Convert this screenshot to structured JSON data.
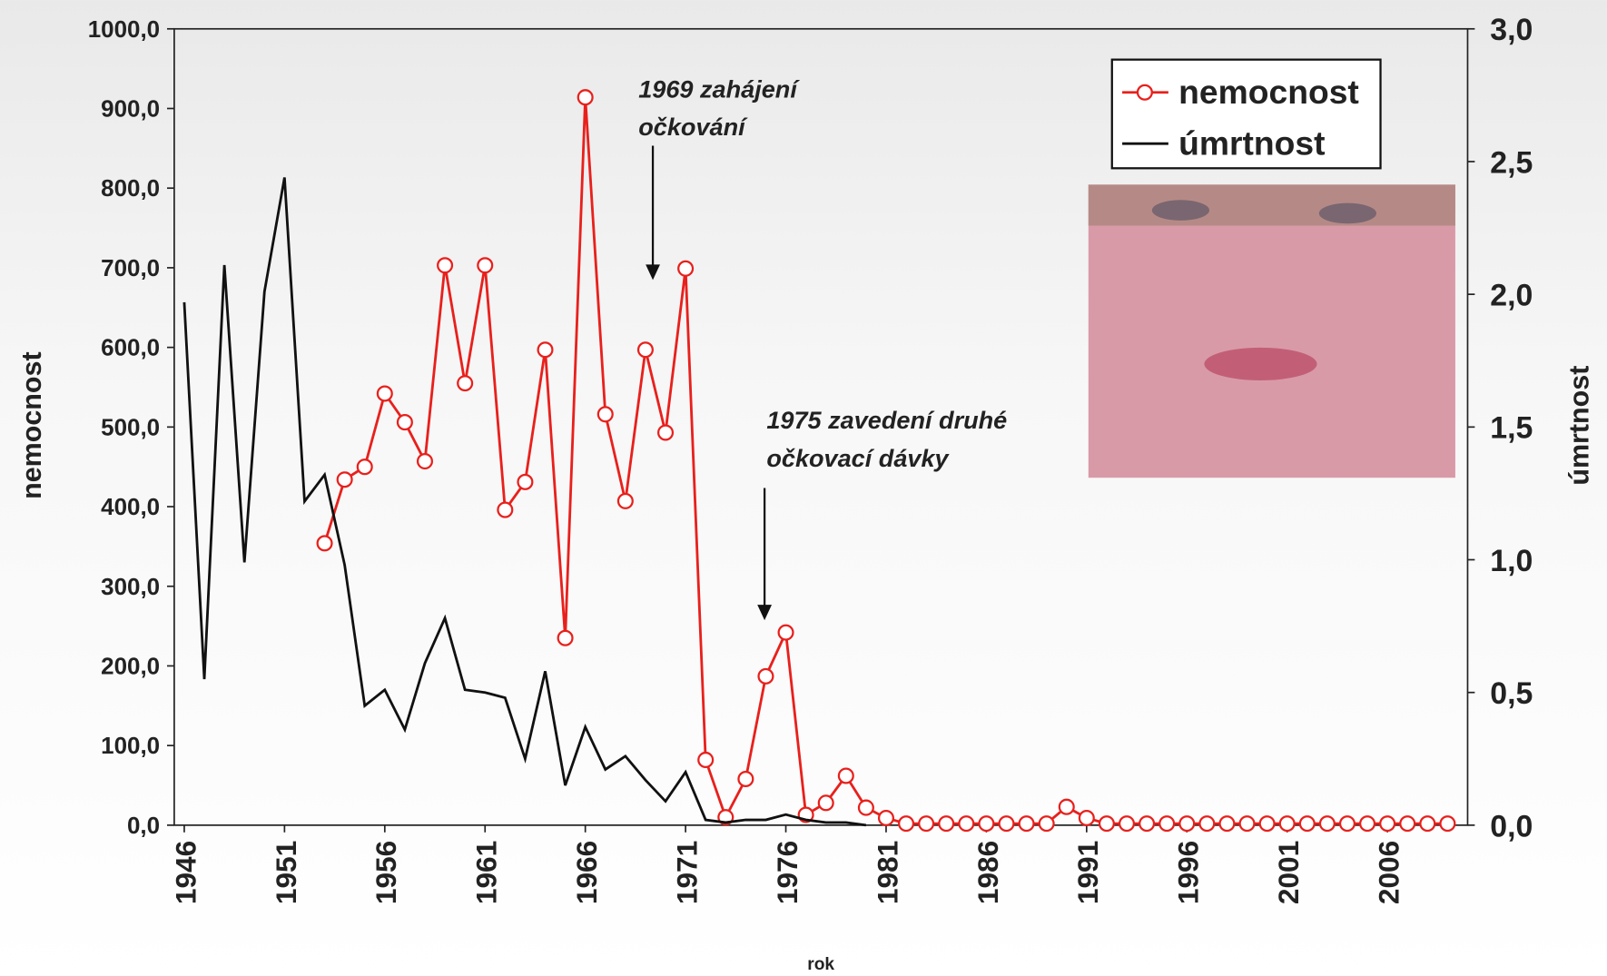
{
  "chart_data": {
    "type": "line",
    "x": [
      1946,
      1947,
      1948,
      1949,
      1950,
      1951,
      1952,
      1953,
      1954,
      1955,
      1956,
      1957,
      1958,
      1959,
      1960,
      1961,
      1962,
      1963,
      1964,
      1965,
      1966,
      1967,
      1968,
      1969,
      1970,
      1971,
      1972,
      1973,
      1974,
      1975,
      1976,
      1977,
      1978,
      1979,
      1980,
      1981,
      1982,
      1983,
      1984,
      1985,
      1986,
      1987,
      1988,
      1989,
      1990,
      1991,
      1992,
      1993,
      1994,
      1995,
      1996,
      1997,
      1998,
      1999,
      2000,
      2001,
      2002,
      2003,
      2004,
      2005,
      2006,
      2007,
      2008,
      2009
    ],
    "series": [
      {
        "name": "nemocnost",
        "color": "#e8201c",
        "marker": "circle",
        "values": [
          null,
          null,
          null,
          null,
          null,
          null,
          null,
          354,
          434,
          450,
          542,
          506,
          457,
          703,
          555,
          703,
          396,
          431,
          597,
          235,
          914,
          516,
          407,
          597,
          493,
          699,
          82,
          10,
          58,
          187,
          242,
          13,
          28,
          62,
          22,
          9,
          2,
          2,
          2,
          2,
          2,
          2,
          2,
          2,
          23,
          9,
          2,
          2,
          2,
          2,
          2,
          2,
          2,
          2,
          2,
          2,
          2,
          2,
          2,
          2,
          2,
          2,
          2,
          2
        ]
      },
      {
        "name": "úmrtnost",
        "color": "#111111",
        "axis": "y2",
        "values": [
          1.97,
          0.55,
          2.11,
          0.99,
          2.01,
          2.44,
          1.22,
          1.32,
          0.98,
          0.45,
          0.51,
          0.36,
          0.61,
          0.78,
          0.51,
          0.5,
          0.48,
          0.25,
          0.58,
          0.15,
          0.37,
          0.21,
          0.26,
          0.17,
          0.09,
          0.2,
          0.02,
          0.01,
          0.02,
          0.02,
          0.04,
          0.02,
          0.01,
          0.01,
          0.0,
          null,
          null,
          null,
          null,
          null,
          null,
          null,
          null,
          null,
          null,
          null,
          null,
          null,
          null,
          null,
          null,
          null,
          null,
          null,
          null,
          null,
          null,
          null,
          null,
          null,
          null,
          null,
          null,
          null
        ]
      }
    ],
    "xlim": [
      1945.5,
      2010
    ],
    "xticks": [
      1946,
      1951,
      1956,
      1961,
      1966,
      1971,
      1976,
      1981,
      1986,
      1991,
      1996,
      2001,
      2006
    ],
    "ylim": [
      0,
      1000
    ],
    "yticks": [
      {
        "value": 0,
        "label": "0,0"
      },
      {
        "value": 100,
        "label": "100,0"
      },
      {
        "value": 200,
        "label": "200,0"
      },
      {
        "value": 300,
        "label": "300,0"
      },
      {
        "value": 400,
        "label": "400,0"
      },
      {
        "value": 500,
        "label": "500,0"
      },
      {
        "value": 600,
        "label": "600,0"
      },
      {
        "value": 700,
        "label": "700,0"
      },
      {
        "value": 800,
        "label": "800,0"
      },
      {
        "value": 900,
        "label": "900,0"
      },
      {
        "value": 1000,
        "label": "1000,0"
      }
    ],
    "y2lim": [
      0,
      3
    ],
    "y2ticks": [
      {
        "value": 0,
        "label": "0,0"
      },
      {
        "value": 0.5,
        "label": "0,5"
      },
      {
        "value": 1,
        "label": "1,0"
      },
      {
        "value": 1.5,
        "label": "1,5"
      },
      {
        "value": 2,
        "label": "2,0"
      },
      {
        "value": 2.5,
        "label": "2,5"
      },
      {
        "value": 3,
        "label": "3,0"
      }
    ],
    "xlabel": "rok",
    "ylabel": "nemocnost",
    "y2label": "úmrtnost",
    "legend": "upper right",
    "annotations": [
      [
        "1969 zahájení",
        "očkování"
      ],
      [
        "1975 zavedení druhé",
        "očkovací dávky"
      ]
    ]
  }
}
